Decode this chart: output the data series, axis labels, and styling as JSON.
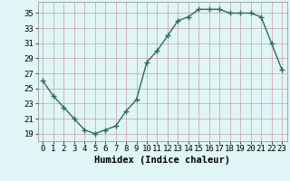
{
  "x": [
    0,
    1,
    2,
    3,
    4,
    5,
    6,
    7,
    8,
    9,
    10,
    11,
    12,
    13,
    14,
    15,
    16,
    17,
    18,
    19,
    20,
    21,
    22,
    23
  ],
  "y": [
    26,
    24,
    22.5,
    21,
    19.5,
    19,
    19.5,
    20,
    22,
    23.5,
    28.5,
    30,
    32,
    34,
    34.5,
    35.5,
    35.5,
    35.5,
    35,
    35,
    35,
    34.5,
    31,
    27.5
  ],
  "line_color": "#2e6b5e",
  "marker": "+",
  "marker_size": 4,
  "marker_lw": 1.0,
  "line_width": 1.0,
  "bg_color": "#e0f5f5",
  "grid_color": "#c8a0a0",
  "xlabel": "Humidex (Indice chaleur)",
  "xlabel_fontsize": 7.5,
  "tick_fontsize": 6.5,
  "ylim": [
    18,
    36.5
  ],
  "yticks": [
    19,
    21,
    23,
    25,
    27,
    29,
    31,
    33,
    35
  ],
  "xlim": [
    -0.5,
    23.5
  ],
  "xticks": [
    0,
    1,
    2,
    3,
    4,
    5,
    6,
    7,
    8,
    9,
    10,
    11,
    12,
    13,
    14,
    15,
    16,
    17,
    18,
    19,
    20,
    21,
    22,
    23
  ]
}
